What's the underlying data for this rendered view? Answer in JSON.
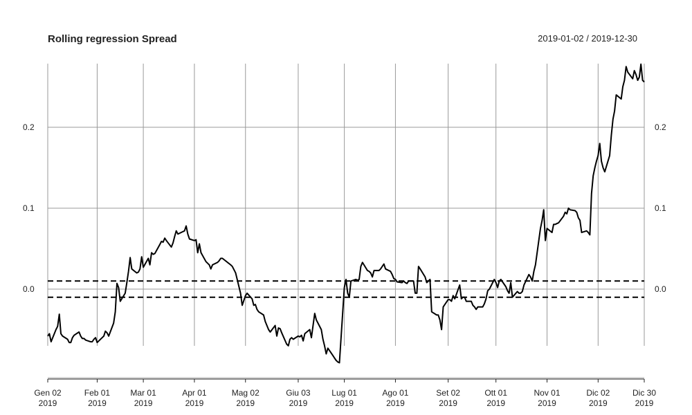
{
  "chart_data": {
    "type": "line",
    "title": "Rolling regression Spread",
    "date_range": "2019-01-02 / 2019-12-30",
    "xlabel": "",
    "ylabel": "",
    "x_range": [
      "2019-01-02",
      "2019-12-30"
    ],
    "ylim": [
      -0.1,
      0.29
    ],
    "y_ticks": [
      0.0,
      0.1,
      0.2
    ],
    "y_tick_labels": [
      "0.0",
      "0.1",
      "0.2"
    ],
    "y_tick_labels_right": [
      "0.0",
      "0.1",
      "0.2"
    ],
    "x_ticks": [
      {
        "date": "2019-01-02",
        "label": "Gen 02",
        "year": "2019"
      },
      {
        "date": "2019-02-01",
        "label": "Feb 01",
        "year": "2019"
      },
      {
        "date": "2019-03-01",
        "label": "Mar 01",
        "year": "2019"
      },
      {
        "date": "2019-04-01",
        "label": "Apr 01",
        "year": "2019"
      },
      {
        "date": "2019-05-02",
        "label": "Mag 02",
        "year": "2019"
      },
      {
        "date": "2019-06-03",
        "label": "Giu 03",
        "year": "2019"
      },
      {
        "date": "2019-07-01",
        "label": "Lug 01",
        "year": "2019"
      },
      {
        "date": "2019-08-01",
        "label": "Ago 01",
        "year": "2019"
      },
      {
        "date": "2019-09-02",
        "label": "Set 02",
        "year": "2019"
      },
      {
        "date": "2019-10-01",
        "label": "Ott 01",
        "year": "2019"
      },
      {
        "date": "2019-11-01",
        "label": "Nov 01",
        "year": "2019"
      },
      {
        "date": "2019-12-02",
        "label": "Dic 02",
        "year": "2019"
      },
      {
        "date": "2019-12-30",
        "label": "Dic 30",
        "year": "2019"
      }
    ],
    "reference_lines": [
      0.01,
      -0.01
    ],
    "grid": true,
    "series": [
      {
        "color": "#000000",
        "points": [
          [
            "2019-01-02",
            -0.058
          ],
          [
            "2019-01-03",
            -0.055
          ],
          [
            "2019-01-04",
            -0.065
          ],
          [
            "2019-01-07",
            -0.05
          ],
          [
            "2019-01-08",
            -0.046
          ],
          [
            "2019-01-09",
            -0.031
          ],
          [
            "2019-01-10",
            -0.055
          ],
          [
            "2019-01-11",
            -0.058
          ],
          [
            "2019-01-14",
            -0.062
          ],
          [
            "2019-01-15",
            -0.066
          ],
          [
            "2019-01-16",
            -0.066
          ],
          [
            "2019-01-17",
            -0.06
          ],
          [
            "2019-01-18",
            -0.057
          ],
          [
            "2019-01-21",
            -0.053
          ],
          [
            "2019-01-22",
            -0.058
          ],
          [
            "2019-01-23",
            -0.061
          ],
          [
            "2019-01-24",
            -0.061
          ],
          [
            "2019-01-25",
            -0.063
          ],
          [
            "2019-01-28",
            -0.065
          ],
          [
            "2019-01-29",
            -0.065
          ],
          [
            "2019-01-30",
            -0.062
          ],
          [
            "2019-01-31",
            -0.06
          ],
          [
            "2019-02-01",
            -0.066
          ],
          [
            "2019-02-04",
            -0.06
          ],
          [
            "2019-02-05",
            -0.058
          ],
          [
            "2019-02-06",
            -0.052
          ],
          [
            "2019-02-07",
            -0.054
          ],
          [
            "2019-02-08",
            -0.058
          ],
          [
            "2019-02-11",
            -0.042
          ],
          [
            "2019-02-12",
            -0.028
          ],
          [
            "2019-02-13",
            0.007
          ],
          [
            "2019-02-14",
            0.002
          ],
          [
            "2019-02-15",
            -0.015
          ],
          [
            "2019-02-18",
            -0.005
          ],
          [
            "2019-02-19",
            0.008
          ],
          [
            "2019-02-20",
            0.022
          ],
          [
            "2019-02-21",
            0.039
          ],
          [
            "2019-02-22",
            0.025
          ],
          [
            "2019-02-25",
            0.02
          ],
          [
            "2019-02-26",
            0.021
          ],
          [
            "2019-02-27",
            0.025
          ],
          [
            "2019-02-28",
            0.04
          ],
          [
            "2019-03-01",
            0.027
          ],
          [
            "2019-03-04",
            0.038
          ],
          [
            "2019-03-05",
            0.03
          ],
          [
            "2019-03-06",
            0.045
          ],
          [
            "2019-03-07",
            0.043
          ],
          [
            "2019-03-08",
            0.044
          ],
          [
            "2019-03-11",
            0.055
          ],
          [
            "2019-03-12",
            0.059
          ],
          [
            "2019-03-13",
            0.058
          ],
          [
            "2019-03-14",
            0.063
          ],
          [
            "2019-03-15",
            0.06
          ],
          [
            "2019-03-18",
            0.052
          ],
          [
            "2019-03-19",
            0.057
          ],
          [
            "2019-03-20",
            0.065
          ],
          [
            "2019-03-21",
            0.072
          ],
          [
            "2019-03-22",
            0.068
          ],
          [
            "2019-03-25",
            0.071
          ],
          [
            "2019-03-26",
            0.072
          ],
          [
            "2019-03-27",
            0.078
          ],
          [
            "2019-03-28",
            0.068
          ],
          [
            "2019-03-29",
            0.062
          ],
          [
            "2019-04-01",
            0.06
          ],
          [
            "2019-04-02",
            0.061
          ],
          [
            "2019-04-03",
            0.045
          ],
          [
            "2019-04-04",
            0.056
          ],
          [
            "2019-04-05",
            0.045
          ],
          [
            "2019-04-08",
            0.034
          ],
          [
            "2019-04-09",
            0.032
          ],
          [
            "2019-04-10",
            0.03
          ],
          [
            "2019-04-11",
            0.025
          ],
          [
            "2019-04-12",
            0.03
          ],
          [
            "2019-04-15",
            0.033
          ],
          [
            "2019-04-16",
            0.035
          ],
          [
            "2019-04-17",
            0.038
          ],
          [
            "2019-04-18",
            0.038
          ],
          [
            "2019-04-23",
            0.03
          ],
          [
            "2019-04-24",
            0.028
          ],
          [
            "2019-04-26",
            0.02
          ],
          [
            "2019-04-29",
            -0.005
          ],
          [
            "2019-04-30",
            -0.02
          ],
          [
            "2019-05-02",
            -0.008
          ],
          [
            "2019-05-03",
            -0.005
          ],
          [
            "2019-05-06",
            -0.012
          ],
          [
            "2019-05-07",
            -0.02
          ],
          [
            "2019-05-08",
            -0.019
          ],
          [
            "2019-05-09",
            -0.025
          ],
          [
            "2019-05-10",
            -0.028
          ],
          [
            "2019-05-13",
            -0.032
          ],
          [
            "2019-05-14",
            -0.04
          ],
          [
            "2019-05-15",
            -0.045
          ],
          [
            "2019-05-16",
            -0.05
          ],
          [
            "2019-05-17",
            -0.053
          ],
          [
            "2019-05-20",
            -0.045
          ],
          [
            "2019-05-21",
            -0.058
          ],
          [
            "2019-05-22",
            -0.048
          ],
          [
            "2019-05-23",
            -0.049
          ],
          [
            "2019-05-24",
            -0.054
          ],
          [
            "2019-05-27",
            -0.068
          ],
          [
            "2019-05-28",
            -0.07
          ],
          [
            "2019-05-29",
            -0.062
          ],
          [
            "2019-05-30",
            -0.06
          ],
          [
            "2019-05-31",
            -0.062
          ],
          [
            "2019-06-03",
            -0.058
          ],
          [
            "2019-06-04",
            -0.059
          ],
          [
            "2019-06-05",
            -0.057
          ],
          [
            "2019-06-06",
            -0.064
          ],
          [
            "2019-06-07",
            -0.055
          ],
          [
            "2019-06-10",
            -0.05
          ],
          [
            "2019-06-11",
            -0.06
          ],
          [
            "2019-06-12",
            -0.045
          ],
          [
            "2019-06-13",
            -0.03
          ],
          [
            "2019-06-14",
            -0.038
          ],
          [
            "2019-06-17",
            -0.05
          ],
          [
            "2019-06-18",
            -0.062
          ],
          [
            "2019-06-19",
            -0.07
          ],
          [
            "2019-06-20",
            -0.08
          ],
          [
            "2019-06-21",
            -0.073
          ],
          [
            "2019-06-24",
            -0.082
          ],
          [
            "2019-06-25",
            -0.085
          ],
          [
            "2019-06-26",
            -0.088
          ],
          [
            "2019-06-27",
            -0.09
          ],
          [
            "2019-06-28",
            -0.091
          ],
          [
            "2019-07-01",
            0.002
          ],
          [
            "2019-07-02",
            0.012
          ],
          [
            "2019-07-03",
            -0.005
          ],
          [
            "2019-07-04",
            -0.01
          ],
          [
            "2019-07-05",
            0.01
          ],
          [
            "2019-07-08",
            0.012
          ],
          [
            "2019-07-09",
            0.011
          ],
          [
            "2019-07-10",
            0.012
          ],
          [
            "2019-07-11",
            0.028
          ],
          [
            "2019-07-12",
            0.033
          ],
          [
            "2019-07-15",
            0.023
          ],
          [
            "2019-07-16",
            0.022
          ],
          [
            "2019-07-17",
            0.02
          ],
          [
            "2019-07-18",
            0.015
          ],
          [
            "2019-07-19",
            0.023
          ],
          [
            "2019-07-22",
            0.023
          ],
          [
            "2019-07-23",
            0.025
          ],
          [
            "2019-07-24",
            0.028
          ],
          [
            "2019-07-25",
            0.031
          ],
          [
            "2019-07-26",
            0.025
          ],
          [
            "2019-07-29",
            0.022
          ],
          [
            "2019-07-30",
            0.018
          ],
          [
            "2019-07-31",
            0.013
          ],
          [
            "2019-08-01",
            0.012
          ],
          [
            "2019-08-02",
            0.009
          ],
          [
            "2019-08-05",
            0.008
          ],
          [
            "2019-08-06",
            0.01
          ],
          [
            "2019-08-07",
            0.008
          ],
          [
            "2019-08-08",
            0.007
          ],
          [
            "2019-08-09",
            0.01
          ],
          [
            "2019-08-12",
            0.01
          ],
          [
            "2019-08-13",
            -0.005
          ],
          [
            "2019-08-14",
            -0.005
          ],
          [
            "2019-08-15",
            0.028
          ],
          [
            "2019-08-16",
            0.025
          ],
          [
            "2019-08-19",
            0.015
          ],
          [
            "2019-08-20",
            0.008
          ],
          [
            "2019-08-21",
            0.01
          ],
          [
            "2019-08-22",
            0.012
          ],
          [
            "2019-08-23",
            -0.028
          ],
          [
            "2019-08-26",
            -0.032
          ],
          [
            "2019-08-27",
            -0.032
          ],
          [
            "2019-08-28",
            -0.038
          ],
          [
            "2019-08-29",
            -0.05
          ],
          [
            "2019-08-30",
            -0.022
          ],
          [
            "2019-09-02",
            -0.013
          ],
          [
            "2019-09-03",
            -0.013
          ],
          [
            "2019-09-04",
            -0.015
          ],
          [
            "2019-09-05",
            -0.008
          ],
          [
            "2019-09-06",
            -0.012
          ],
          [
            "2019-09-09",
            0.005
          ],
          [
            "2019-09-10",
            -0.012
          ],
          [
            "2019-09-11",
            -0.01
          ],
          [
            "2019-09-12",
            -0.01
          ],
          [
            "2019-09-13",
            -0.015
          ],
          [
            "2019-09-16",
            -0.015
          ],
          [
            "2019-09-17",
            -0.02
          ],
          [
            "2019-09-18",
            -0.022
          ],
          [
            "2019-09-19",
            -0.025
          ],
          [
            "2019-09-20",
            -0.022
          ],
          [
            "2019-09-23",
            -0.022
          ],
          [
            "2019-09-24",
            -0.018
          ],
          [
            "2019-09-25",
            -0.012
          ],
          [
            "2019-09-26",
            -0.002
          ],
          [
            "2019-09-27",
            0.0
          ],
          [
            "2019-09-30",
            0.012
          ],
          [
            "2019-10-01",
            0.008
          ],
          [
            "2019-10-02",
            0.002
          ],
          [
            "2019-10-03",
            0.01
          ],
          [
            "2019-10-04",
            0.012
          ],
          [
            "2019-10-07",
            0.003
          ],
          [
            "2019-10-08",
            -0.002
          ],
          [
            "2019-10-09",
            -0.005
          ],
          [
            "2019-10-10",
            0.008
          ],
          [
            "2019-10-11",
            -0.01
          ],
          [
            "2019-10-14",
            -0.003
          ],
          [
            "2019-10-15",
            -0.005
          ],
          [
            "2019-10-16",
            -0.005
          ],
          [
            "2019-10-17",
            -0.003
          ],
          [
            "2019-10-18",
            0.005
          ],
          [
            "2019-10-21",
            0.018
          ],
          [
            "2019-10-22",
            0.015
          ],
          [
            "2019-10-23",
            0.01
          ],
          [
            "2019-10-24",
            0.022
          ],
          [
            "2019-10-25",
            0.03
          ],
          [
            "2019-10-28",
            0.075
          ],
          [
            "2019-10-29",
            0.085
          ],
          [
            "2019-10-30",
            0.098
          ],
          [
            "2019-10-31",
            0.06
          ],
          [
            "2019-11-01",
            0.075
          ],
          [
            "2019-11-04",
            0.07
          ],
          [
            "2019-11-05",
            0.08
          ],
          [
            "2019-11-06",
            0.08
          ],
          [
            "2019-11-07",
            0.081
          ],
          [
            "2019-11-08",
            0.082
          ],
          [
            "2019-11-11",
            0.09
          ],
          [
            "2019-11-12",
            0.095
          ],
          [
            "2019-11-13",
            0.093
          ],
          [
            "2019-11-14",
            0.1
          ],
          [
            "2019-11-15",
            0.098
          ],
          [
            "2019-11-18",
            0.097
          ],
          [
            "2019-11-19",
            0.095
          ],
          [
            "2019-11-20",
            0.088
          ],
          [
            "2019-11-21",
            0.085
          ],
          [
            "2019-11-22",
            0.07
          ],
          [
            "2019-11-25",
            0.072
          ],
          [
            "2019-11-26",
            0.07
          ],
          [
            "2019-11-27",
            0.067
          ],
          [
            "2019-11-28",
            0.118
          ],
          [
            "2019-11-29",
            0.14
          ],
          [
            "2019-11-30",
            0.15
          ],
          [
            "2019-12-01",
            0.158
          ],
          [
            "2019-12-02",
            0.165
          ],
          [
            "2019-12-03",
            0.18
          ],
          [
            "2019-12-04",
            0.158
          ],
          [
            "2019-12-05",
            0.15
          ],
          [
            "2019-12-06",
            0.145
          ],
          [
            "2019-12-09",
            0.165
          ],
          [
            "2019-12-10",
            0.19
          ],
          [
            "2019-12-11",
            0.21
          ],
          [
            "2019-12-12",
            0.22
          ],
          [
            "2019-12-13",
            0.24
          ],
          [
            "2019-12-16",
            0.235
          ],
          [
            "2019-12-17",
            0.25
          ],
          [
            "2019-12-18",
            0.258
          ],
          [
            "2019-12-19",
            0.275
          ],
          [
            "2019-12-20",
            0.268
          ],
          [
            "2019-12-23",
            0.26
          ],
          [
            "2019-12-24",
            0.27
          ],
          [
            "2019-12-25",
            0.265
          ],
          [
            "2019-12-26",
            0.258
          ],
          [
            "2019-12-27",
            0.262
          ],
          [
            "2019-12-28",
            0.278
          ],
          [
            "2019-12-29",
            0.258
          ],
          [
            "2019-12-30",
            0.256
          ]
        ]
      }
    ]
  }
}
